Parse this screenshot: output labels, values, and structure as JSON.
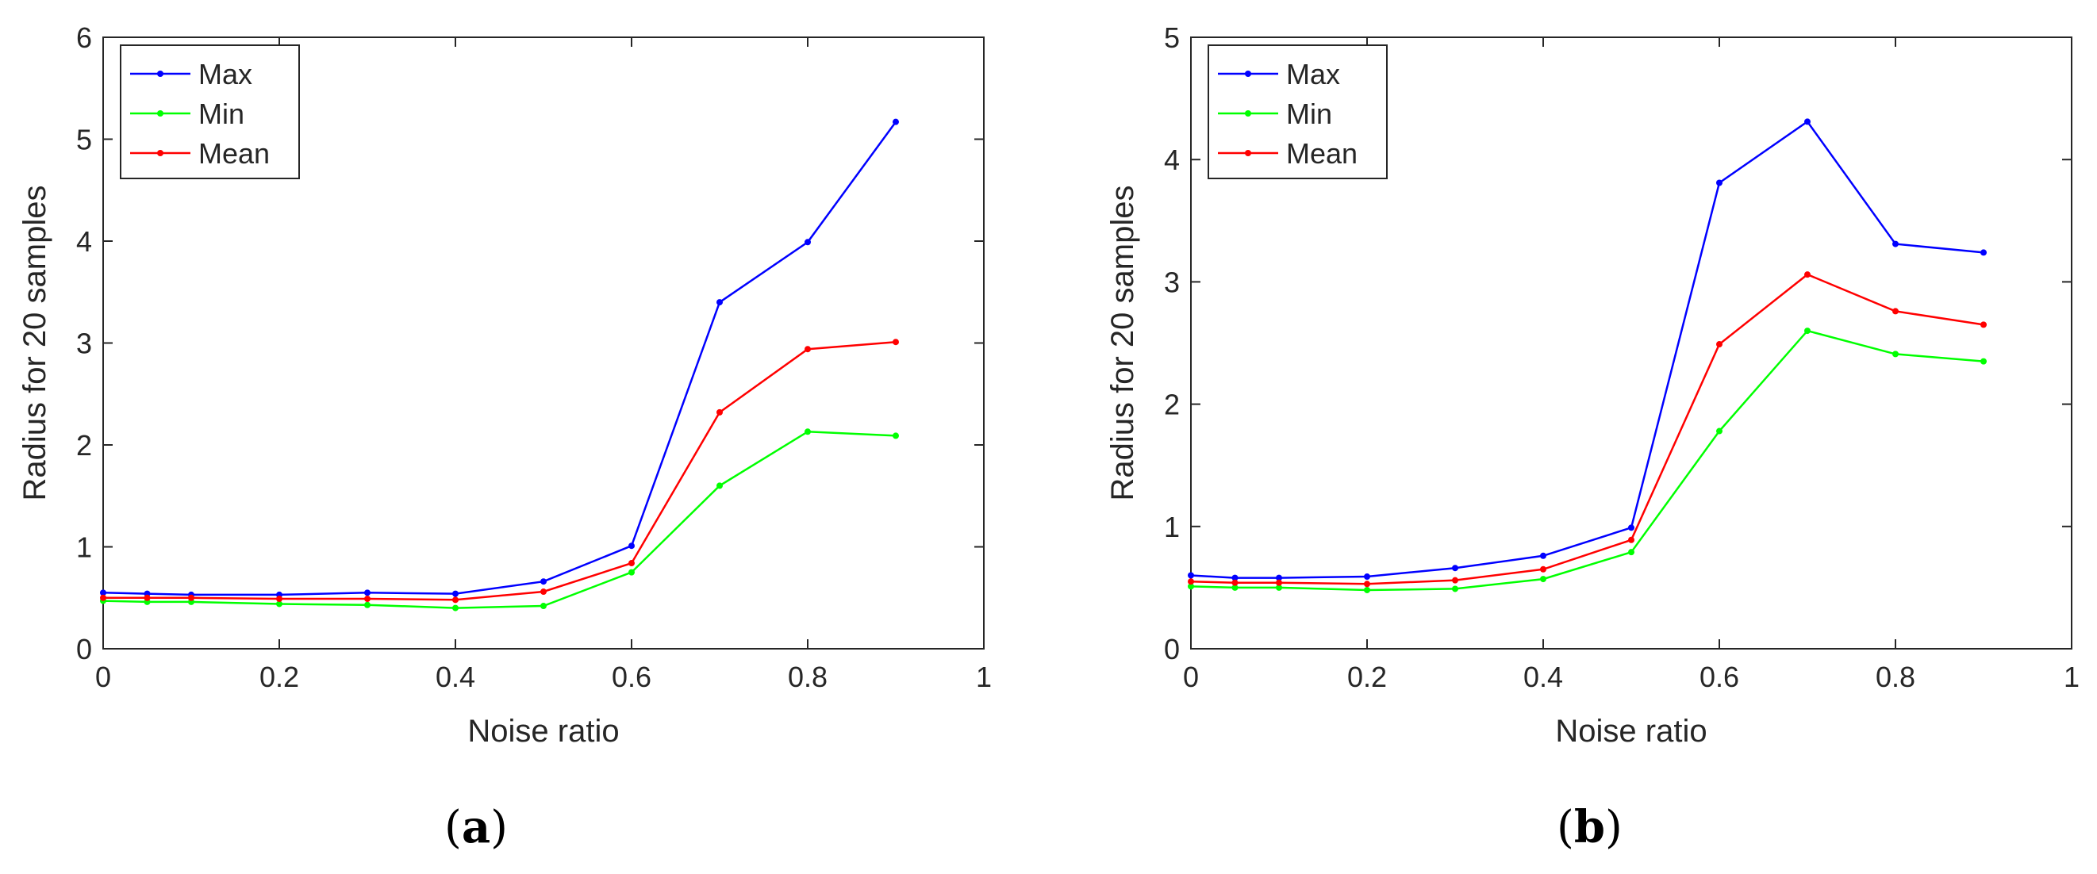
{
  "chart_data": [
    {
      "type": "line",
      "panel_label": "a",
      "title": "",
      "xlabel": "Noise ratio",
      "ylabel": "Radius for 20 samples",
      "xlim": [
        0,
        1
      ],
      "ylim": [
        0,
        6
      ],
      "xticks": [
        0,
        0.2,
        0.4,
        0.6,
        0.8,
        1
      ],
      "xtick_labels": [
        "0",
        "0.2",
        "0.4",
        "0.6",
        "0.8",
        "1"
      ],
      "yticks": [
        0,
        1,
        2,
        3,
        4,
        5,
        6
      ],
      "ytick_labels": [
        "0",
        "1",
        "2",
        "3",
        "4",
        "5",
        "6"
      ],
      "grid": false,
      "legend_position": "top-left",
      "x": [
        0,
        0.05,
        0.1,
        0.2,
        0.3,
        0.4,
        0.5,
        0.6,
        0.7,
        0.8,
        0.9
      ],
      "series": [
        {
          "name": "Max",
          "color": "#0000ff",
          "values": [
            0.55,
            0.54,
            0.53,
            0.53,
            0.55,
            0.54,
            0.66,
            1.01,
            3.4,
            3.99,
            5.17
          ]
        },
        {
          "name": "Min",
          "color": "#00ff00",
          "values": [
            0.47,
            0.46,
            0.46,
            0.44,
            0.43,
            0.4,
            0.42,
            0.75,
            1.6,
            2.13,
            2.09
          ]
        },
        {
          "name": "Mean",
          "color": "#ff0000",
          "values": [
            0.5,
            0.5,
            0.5,
            0.49,
            0.49,
            0.48,
            0.56,
            0.84,
            2.32,
            2.94,
            3.01
          ]
        }
      ]
    },
    {
      "type": "line",
      "panel_label": "b",
      "title": "",
      "xlabel": "Noise ratio",
      "ylabel": "Radius for 20 samples",
      "xlim": [
        0,
        1
      ],
      "ylim": [
        0,
        5
      ],
      "xticks": [
        0,
        0.2,
        0.4,
        0.6,
        0.8,
        1
      ],
      "xtick_labels": [
        "0",
        "0.2",
        "0.4",
        "0.6",
        "0.8",
        "1"
      ],
      "yticks": [
        0,
        1,
        2,
        3,
        4,
        5
      ],
      "ytick_labels": [
        "0",
        "1",
        "2",
        "3",
        "4",
        "5"
      ],
      "grid": false,
      "legend_position": "top-left",
      "x": [
        0,
        0.05,
        0.1,
        0.2,
        0.3,
        0.4,
        0.5,
        0.6,
        0.7,
        0.8,
        0.9
      ],
      "series": [
        {
          "name": "Max",
          "color": "#0000ff",
          "values": [
            0.6,
            0.58,
            0.58,
            0.59,
            0.66,
            0.76,
            0.99,
            3.81,
            4.31,
            3.31,
            3.24
          ]
        },
        {
          "name": "Min",
          "color": "#00ff00",
          "values": [
            0.51,
            0.5,
            0.5,
            0.48,
            0.49,
            0.57,
            0.79,
            1.78,
            2.6,
            2.41,
            2.35
          ]
        },
        {
          "name": "Mean",
          "color": "#ff0000",
          "values": [
            0.55,
            0.54,
            0.54,
            0.53,
            0.56,
            0.65,
            0.89,
            2.49,
            3.06,
            2.76,
            2.65
          ]
        }
      ]
    }
  ]
}
